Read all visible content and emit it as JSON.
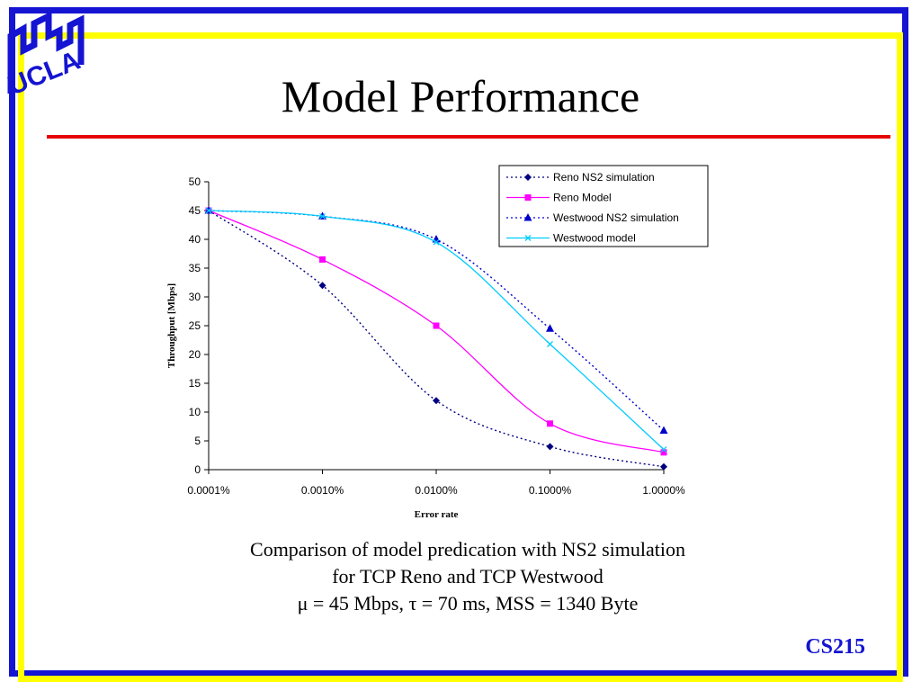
{
  "slide": {
    "title": "Model Performance",
    "caption_lines": [
      "Comparison of model predication with NS2 simulation",
      "for TCP Reno and TCP Westwood",
      "μ = 45 Mbps, τ = 70 ms, MSS = 1340 Byte"
    ],
    "footer": "CS215",
    "logo_text": "UCLA"
  },
  "colors": {
    "frame_blue": "#1414d2",
    "frame_yellow": "#ffff00",
    "title_rule": "#e60000",
    "reno_sim": "#000080",
    "reno_model": "#ff00ff",
    "westwood_sim": "#0000cc",
    "westwood_model": "#00ccff"
  },
  "chart_data": {
    "type": "line",
    "xlabel": "Error rate",
    "ylabel": "Throughput [Mbps]",
    "x_scale": "log",
    "categories": [
      "0.0001%",
      "0.0010%",
      "0.0100%",
      "0.1000%",
      "1.0000%"
    ],
    "ylim": [
      0,
      50
    ],
    "yticks": [
      0,
      5,
      10,
      15,
      20,
      25,
      30,
      35,
      40,
      45,
      50
    ],
    "grid": false,
    "legend_position": "top-right",
    "series": [
      {
        "name": "Reno NS2 simulation",
        "values": [
          45,
          32,
          12,
          4,
          0.5
        ],
        "marker": "diamond",
        "line": "dotted",
        "color": "#000080"
      },
      {
        "name": "Reno Model",
        "values": [
          45,
          36.5,
          25,
          8,
          3
        ],
        "marker": "square",
        "line": "solid",
        "color": "#ff00ff"
      },
      {
        "name": "Westwood NS2 simulation",
        "values": [
          45,
          44,
          40,
          24.5,
          6.8
        ],
        "marker": "triangle",
        "line": "dotted",
        "color": "#0000cc"
      },
      {
        "name": "Westwood model",
        "values": [
          45,
          44,
          39.5,
          21.8,
          3.5
        ],
        "marker": "x",
        "line": "solid",
        "color": "#00ccff"
      }
    ]
  }
}
